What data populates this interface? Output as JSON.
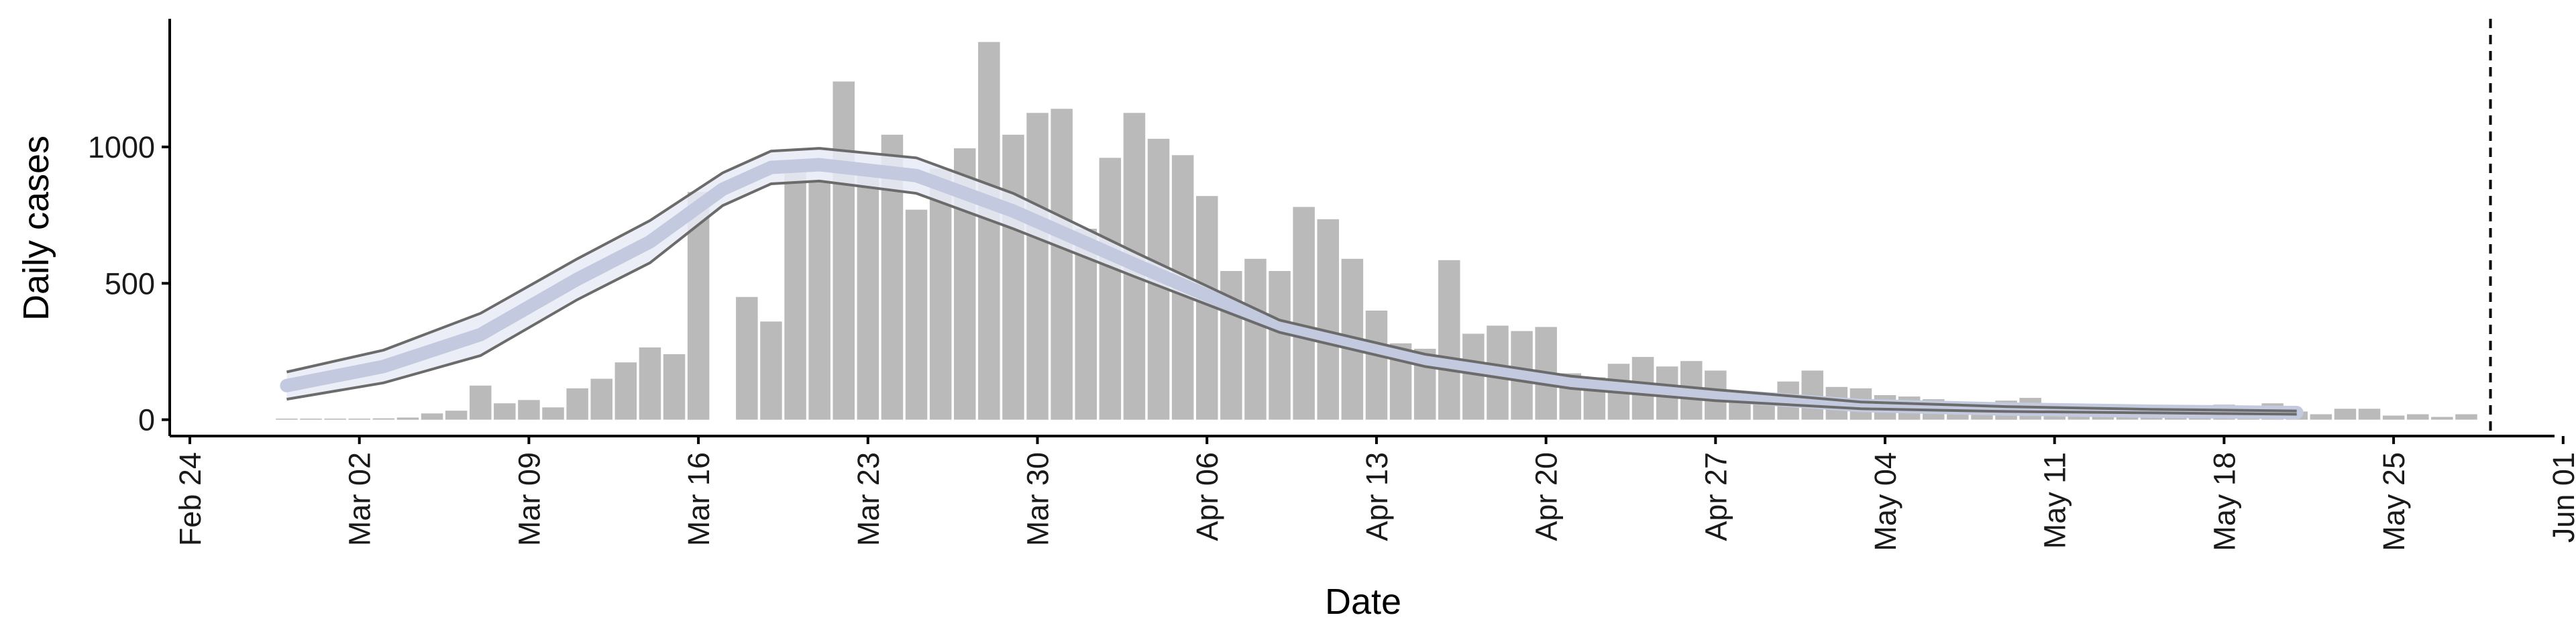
{
  "chart_data": {
    "type": "bar",
    "xlabel": "Date",
    "ylabel": "Daily cases",
    "x_tick_labels": [
      "Feb 24",
      "Mar 02",
      "Mar 09",
      "Mar 16",
      "Mar 23",
      "Mar 30",
      "Apr 06",
      "Apr 13",
      "Apr 20",
      "Apr 27",
      "May 04",
      "May 11",
      "May 18",
      "May 25",
      "Jun 01"
    ],
    "y_tick_labels": [
      "0",
      "500",
      "1000"
    ],
    "x_range": [
      "2020-02-23",
      "2020-06-01"
    ],
    "y_range": [
      -60,
      1470
    ],
    "dashed_line_date": "2020-05-28",
    "first_date": "2020-02-27",
    "bar_values": [
      4,
      4,
      4,
      4,
      5,
      8,
      23,
      33,
      125,
      60,
      72,
      45,
      115,
      150,
      210,
      265,
      240,
      835,
      0,
      450,
      360,
      940,
      875,
      1240,
      930,
      1045,
      770,
      920,
      995,
      1385,
      1045,
      1125,
      1140,
      700,
      960,
      1125,
      1030,
      970,
      820,
      545,
      590,
      545,
      780,
      735,
      590,
      400,
      280,
      260,
      585,
      315,
      345,
      325,
      340,
      170,
      155,
      205,
      230,
      195,
      215,
      180,
      100,
      100,
      140,
      180,
      120,
      115,
      90,
      85,
      75,
      60,
      60,
      70,
      80,
      50,
      55,
      45,
      42,
      40,
      40,
      40,
      55,
      50,
      60,
      30,
      20,
      40,
      40,
      15,
      20,
      10,
      20
    ],
    "model_band": {
      "dates": [
        "2020-02-27",
        "2020-03-02",
        "2020-03-06",
        "2020-03-10",
        "2020-03-13",
        "2020-03-16",
        "2020-03-18",
        "2020-03-20",
        "2020-03-24",
        "2020-03-28",
        "2020-04-02",
        "2020-04-08",
        "2020-04-14",
        "2020-04-20",
        "2020-04-26",
        "2020-05-02",
        "2020-05-08",
        "2020-05-14",
        "2020-05-20"
      ],
      "upper": [
        175,
        255,
        390,
        590,
        730,
        905,
        985,
        995,
        960,
        830,
        615,
        365,
        240,
        160,
        110,
        65,
        48,
        38,
        32
      ],
      "lower": [
        75,
        135,
        235,
        440,
        575,
        785,
        865,
        875,
        830,
        700,
        525,
        320,
        195,
        115,
        70,
        40,
        30,
        25,
        20
      ],
      "mid": [
        125,
        195,
        312,
        515,
        652,
        845,
        925,
        935,
        895,
        765,
        570,
        342,
        217,
        137,
        90,
        52,
        39,
        31,
        26
      ]
    },
    "colors": {
      "bars": "#bababa",
      "band_outer": "#e8ebf4",
      "band_inner": "#c3cadf",
      "band_lines": "#6b6b6b",
      "axis": "#000000"
    },
    "grid": false,
    "legend": "none"
  }
}
